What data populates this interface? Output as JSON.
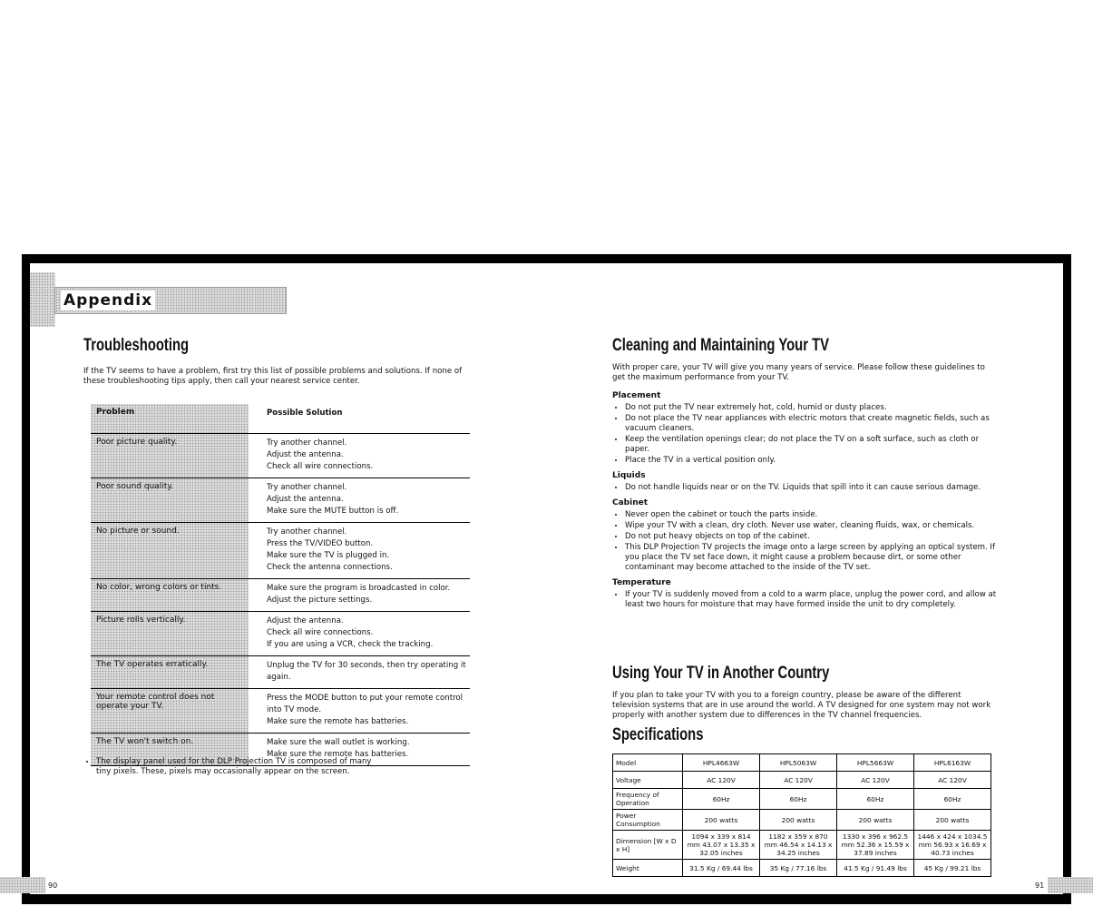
{
  "header": {
    "section": "Appendix"
  },
  "left": {
    "title": "Troubleshooting",
    "intro": "If the TV seems to have a problem, first try this list of possible problems and solutions. If none of these troubleshooting tips apply, then call your nearest service center.",
    "table_headers": [
      "Problem",
      "Possible Solution"
    ],
    "rows": [
      {
        "problem": "Poor picture quality.",
        "solutions": [
          "Try another channel.",
          "Adjust the antenna.",
          "Check all wire connections."
        ]
      },
      {
        "problem": "Poor sound quality.",
        "solutions": [
          "Try another channel.",
          "Adjust the antenna.",
          "Make sure the MUTE button is off."
        ]
      },
      {
        "problem": "No picture or sound.",
        "solutions": [
          "Try another channel.",
          "Press the TV/VIDEO button.",
          "Make sure the TV is plugged in.",
          "Check the antenna connections."
        ]
      },
      {
        "problem": "No color, wrong colors or tints.",
        "solutions": [
          "Make sure the program is broadcasted in color.",
          "Adjust the picture settings."
        ]
      },
      {
        "problem": "Picture rolls vertically.",
        "solutions": [
          "Adjust the antenna.",
          "Check all wire connections.",
          "If you are using a VCR, check the tracking."
        ]
      },
      {
        "problem": "The TV operates erratically.",
        "solutions": [
          "Unplug the TV for 30 seconds, then try operating it",
          "again."
        ]
      },
      {
        "problem": "Your remote control does not operate your TV.",
        "solutions": [
          "Press the MODE button to put your remote control",
          "into TV mode.",
          "Make sure the remote has batteries."
        ]
      },
      {
        "problem": "The TV won't switch on.",
        "solutions": [
          "Make sure the wall outlet is working.",
          "Make sure the remote has batteries."
        ]
      }
    ],
    "note": "The display panel used for the DLP Projection TV is composed of many tiny pixels. These, pixels may occasionally appear on the screen.",
    "page_number": "90"
  },
  "right": {
    "cleaning_title": "Cleaning and Maintaining Your TV",
    "cleaning_intro": "With proper care, your TV will give you many years of service. Please follow these guidelines to get the maximum performance from your TV.",
    "sections": [
      {
        "title": "Placement",
        "items": [
          "Do not put the TV near extremely hot, cold, humid or dusty places.",
          "Do not place the TV near appliances with electric motors that create magnetic fields, such as vacuum cleaners.",
          "Keep the ventilation openings clear; do not place the TV on a soft surface, such as cloth or paper.",
          "Place the TV in a vertical position only."
        ]
      },
      {
        "title": "Liquids",
        "items": [
          "Do not handle liquids near or on the TV. Liquids that spill into it can cause serious damage."
        ]
      },
      {
        "title": "Cabinet",
        "items": [
          "Never open the cabinet or touch the parts inside.",
          "Wipe your TV with a clean, dry cloth. Never use water, cleaning fluids, wax, or chemicals.",
          "Do not put heavy objects on top of the cabinet.",
          "This DLP Projection TV projects the image onto a large screen by applying an optical system. If you place the TV set face down, it might cause a problem because dirt, or some other contaminant may become attached to the inside of the TV set."
        ]
      },
      {
        "title": "Temperature",
        "items": [
          "If your TV is suddenly moved from a cold to a warm place, unplug the power cord, and allow at least two hours for moisture that may have formed inside the unit to dry completely."
        ]
      }
    ],
    "country_title": "Using Your TV in Another Country",
    "country_text": "If you plan to take your TV with you to a foreign country, please be aware of the different television systems that are in use around the world. A TV designed for one system may not work properly with another system due to differences in the TV channel frequencies.",
    "spec_title": "Specifications",
    "spec_rows": [
      [
        "Model",
        "HPL4663W",
        "HPL5063W",
        "HPL5663W",
        "HPL6163W"
      ],
      [
        "Voltage",
        "AC 120V",
        "AC 120V",
        "AC 120V",
        "AC 120V"
      ],
      [
        "Frequency of Operation",
        "60Hz",
        "60Hz",
        "60Hz",
        "60Hz"
      ],
      [
        "Power Consumption",
        "200 watts",
        "200 watts",
        "200 watts",
        "200 watts"
      ],
      [
        "Dimension [W x D x H]",
        "1094 x 339 x 814 mm 43.07 x 13.35 x 32.05 inches",
        "1182 x 359 x 870 mm 46.54 x 14.13 x 34.25 inches",
        "1330 x 396 x 962.5 mm 52.36 x 15.59 x 37.89 inches",
        "1446 x 424 x 1034.5 mm 56.93 x 16.69 x 40.73 inches"
      ],
      [
        "Weight",
        "31.5 Kg / 69.44 lbs",
        "35 Kg / 77.16 lbs",
        "41.5 Kg / 91.49 lbs",
        "45 Kg / 99.21 lbs"
      ]
    ],
    "page_number": "91"
  }
}
